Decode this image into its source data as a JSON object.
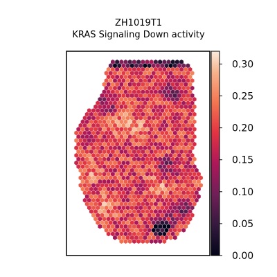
{
  "chart_data": {
    "type": "heatmap",
    "title": "ZH1019T1",
    "subtitle": "KRAS Signaling Down activity",
    "xlabel": "",
    "ylabel": "",
    "colorbar": {
      "colormap": "rocket",
      "range": [
        0.0,
        0.32
      ],
      "ticks": [
        0.0,
        0.05,
        0.1,
        0.15,
        0.2,
        0.25,
        0.3
      ],
      "tick_labels": [
        "0.00",
        "0.05",
        "0.10",
        "0.15",
        "0.20",
        "0.25",
        "0.30"
      ]
    },
    "spots": {
      "description_of_values": "Hexagonal spatial spots colored by activity score; majority values 0.12–0.24 with higher values (~0.25–0.30) scattered in the center-left and lower-left, and low values (~0.00–0.08) along the top edge and in the lower-right region.",
      "value_range": [
        0.0,
        0.31
      ],
      "typical_value": 0.19
    },
    "grid": false,
    "legend": "colorbar-right"
  }
}
